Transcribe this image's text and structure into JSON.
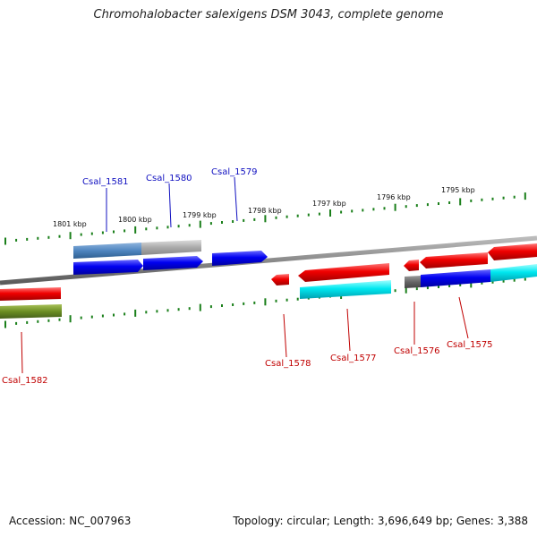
{
  "title": "Chromohalobacter salexigens DSM 3043, complete genome",
  "footer": {
    "accession": "Accession: NC_007963",
    "topology": "Topology: circular; Length: 3,696,649 bp; Genes: 3,388"
  },
  "kbp_labels": [
    "1801 kbp",
    "1800 kbp",
    "1799 kbp",
    "1798 kbp",
    "1797 kbp",
    "1796 kbp",
    "1795 kbp"
  ],
  "gene_labels_top": [
    "Csal_1581",
    "Csal_1580",
    "Csal_1579"
  ],
  "gene_labels_bottom": [
    "Csal_1582",
    "Csal_1578",
    "Csal_1577",
    "Csal_1576",
    "Csal_1575"
  ],
  "colors": {
    "forward_cds": "#0000ee",
    "reverse_cds": "#ee0000",
    "forward_feature": "#5b8fc9",
    "reverse_feature": "#00e5ee",
    "pseudo_feature": "#6b8e23",
    "grey_feature": "#aaaaaa",
    "label_top": "#1010c0",
    "label_bottom": "#c00000",
    "ticks": "#1a7f1a",
    "backbone": "#808080"
  }
}
